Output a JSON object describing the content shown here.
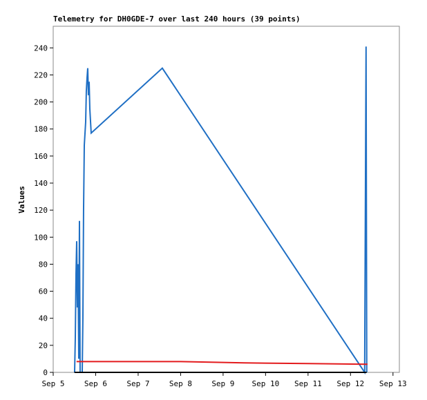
{
  "chart_data": {
    "type": "line",
    "title": "Telemetry for DH0GDE-7 over last 240 hours (39 points)",
    "y_label": "Values",
    "xlim": [
      5,
      13.15
    ],
    "xticks": [
      {
        "value": 5,
        "label": "Sep 5"
      },
      {
        "value": 6,
        "label": "Sep 6"
      },
      {
        "value": 7,
        "label": "Sep 7"
      },
      {
        "value": 8,
        "label": "Sep 8"
      },
      {
        "value": 9,
        "label": "Sep 9"
      },
      {
        "value": 10,
        "label": "Sep 10"
      },
      {
        "value": 11,
        "label": "Sep 11"
      },
      {
        "value": 12,
        "label": "Sep 12"
      },
      {
        "value": 13,
        "label": "Sep 13"
      }
    ],
    "ylim": [
      0,
      256
    ],
    "yticks": [
      0,
      20,
      40,
      60,
      80,
      100,
      120,
      140,
      160,
      180,
      200,
      220,
      240
    ],
    "series": [
      {
        "color": "#1f6fc4",
        "x": [
          5.504,
          5.52,
          5.537,
          5.553,
          5.569,
          5.585,
          5.602,
          5.618,
          5.634,
          5.683,
          5.699,
          5.715,
          5.732,
          5.764,
          5.78,
          5.797,
          5.813,
          5.829,
          5.846,
          5.862,
          5.894,
          7.569,
          12.333,
          12.366,
          12.382
        ],
        "values": [
          0,
          25,
          73,
          97,
          48,
          80,
          10,
          112,
          0,
          0,
          40,
          120,
          168,
          185,
          208,
          218,
          225,
          205,
          215,
          195,
          177,
          225,
          0,
          241,
          0
        ]
      },
      {
        "color": "#e31a1c",
        "x": [
          5.55,
          8.0,
          9.5,
          11.0,
          12.4
        ],
        "values": [
          8,
          8,
          7,
          6.5,
          6
        ]
      },
      {
        "color": "#000000",
        "x": [
          5.5,
          12.38
        ],
        "values": [
          0,
          0
        ]
      }
    ]
  }
}
